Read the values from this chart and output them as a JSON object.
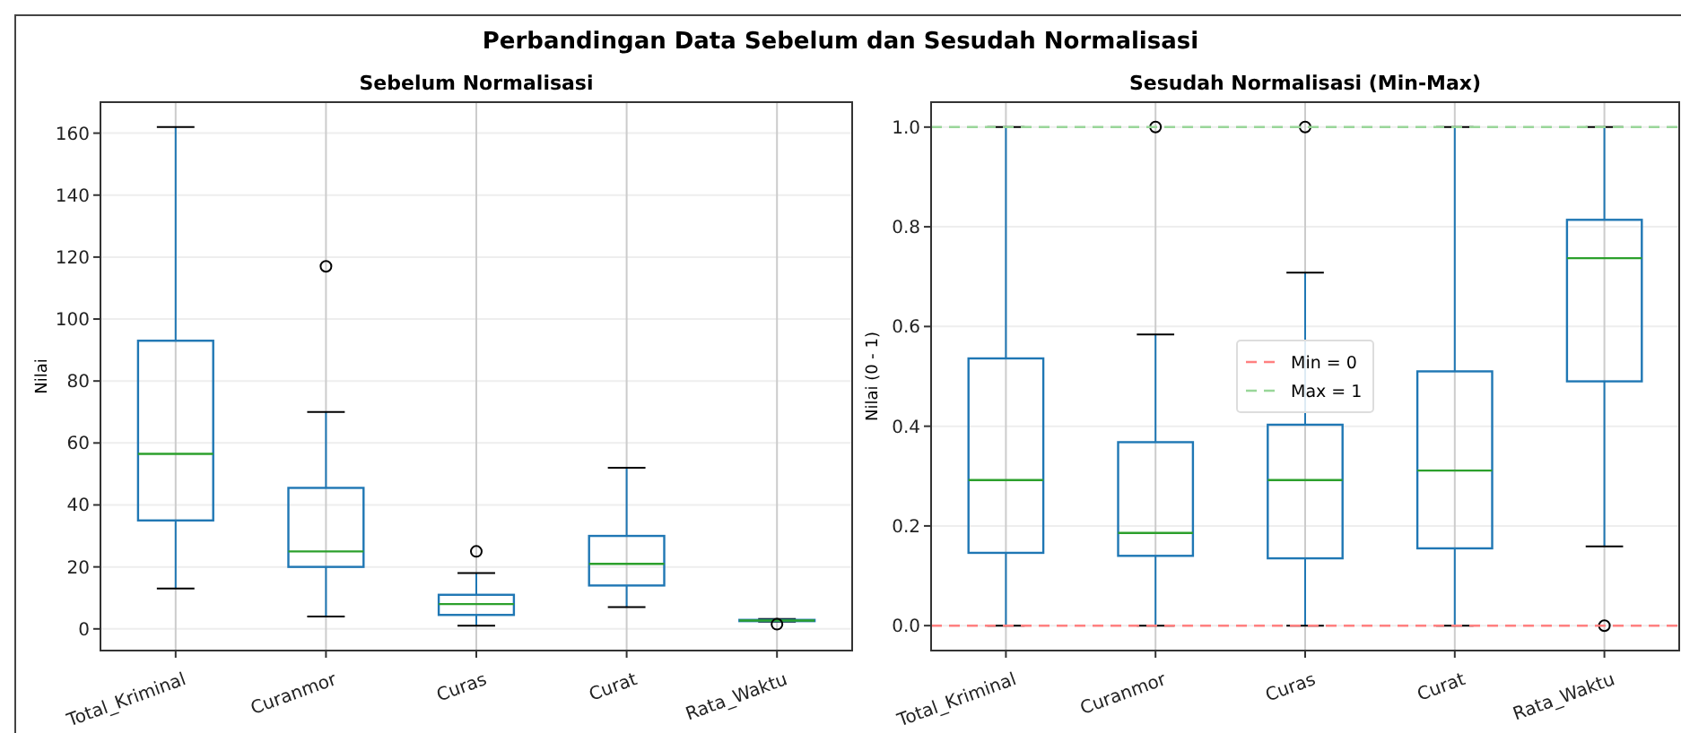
{
  "chart_data": [
    {
      "type": "box",
      "title": "Sebelum Normalisasi",
      "annotations": [
        "Perbandingan Data Sebelum dan Sesudah Normalisasi"
      ],
      "ylabel": "Nilai",
      "categories": [
        "Total_Kriminal",
        "Curanmor",
        "Curas",
        "Curat",
        "Rata_Waktu"
      ],
      "boxes": [
        {
          "low": 13,
          "q1": 35,
          "median": 56.5,
          "q3": 93,
          "high": 162
        },
        {
          "low": 4,
          "q1": 20,
          "median": 25,
          "q3": 45.5,
          "high": 70,
          "outliers": [
            117
          ]
        },
        {
          "low": 1,
          "q1": 4.5,
          "median": 8,
          "q3": 11,
          "high": 18,
          "outliers": [
            25
          ]
        },
        {
          "low": 7,
          "q1": 14,
          "median": 21,
          "q3": 30,
          "high": 52
        },
        {
          "low": 2.3,
          "q1": 2.5,
          "median": 2.7,
          "q3": 2.9,
          "high": 3.2,
          "outliers": [
            1.5
          ]
        }
      ],
      "color": "#1f77b4",
      "ylim": [
        -7,
        170
      ],
      "yticks": [
        0,
        20,
        40,
        60,
        80,
        100,
        120,
        140,
        160
      ],
      "grid": true,
      "legend": false
    },
    {
      "type": "box",
      "title": "Sesudah Normalisasi (Min-Max)",
      "ylabel": "Nilai (0 - 1)",
      "categories": [
        "Total_Kriminal",
        "Curanmor",
        "Curas",
        "Curat",
        "Rata_Waktu"
      ],
      "boxes": [
        {
          "low": 0,
          "q1": 0.146,
          "median": 0.292,
          "q3": 0.536,
          "high": 1
        },
        {
          "low": 0,
          "q1": 0.14,
          "median": 0.186,
          "q3": 0.368,
          "high": 0.584,
          "outliers": [
            1
          ]
        },
        {
          "low": 0,
          "q1": 0.135,
          "median": 0.292,
          "q3": 0.403,
          "high": 0.708,
          "outliers": [
            1
          ]
        },
        {
          "low": 0,
          "q1": 0.155,
          "median": 0.311,
          "q3": 0.51,
          "high": 1
        },
        {
          "low": 0.159,
          "q1": 0.49,
          "median": 0.737,
          "q3": 0.814,
          "high": 1,
          "outliers": [
            0
          ]
        }
      ],
      "color": "#1f77b4",
      "ylim": [
        -0.05,
        1.05
      ],
      "yticks": [
        {
          "value": 0,
          "label": "0.0"
        },
        {
          "value": 0.2,
          "label": "0.2"
        },
        {
          "value": 0.4,
          "label": "0.4"
        },
        {
          "value": 0.6,
          "label": "0.6"
        },
        {
          "value": 0.8,
          "label": "0.8"
        },
        {
          "value": 1,
          "label": "1.0"
        }
      ],
      "grid": true,
      "ref_lines": [
        {
          "axis": "y",
          "value": 0,
          "label": "Min = 0",
          "color": "#ff8080",
          "line_style": "dashed"
        },
        {
          "axis": "y",
          "value": 1,
          "label": "Max = 1",
          "color": "#99d699",
          "line_style": "dashed"
        }
      ],
      "legend": "center"
    }
  ]
}
